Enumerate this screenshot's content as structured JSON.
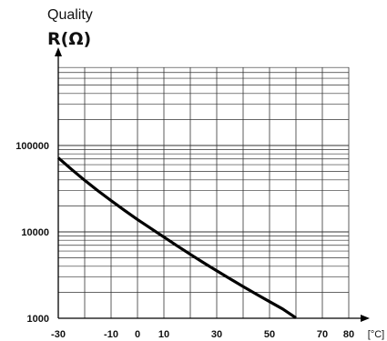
{
  "chart_data": {
    "type": "line",
    "title": "Quality",
    "ylabel": "R(Ω)",
    "xlabel": "[°C]",
    "x_ticks": [
      -30,
      -10,
      0,
      10,
      30,
      50,
      70,
      80
    ],
    "y_ticks": [
      1000,
      10000,
      100000
    ],
    "y_tick_labels": [
      "1000",
      "10000",
      "100000"
    ],
    "y_scale": "log",
    "xlim": [
      -30,
      80
    ],
    "ylim": [
      1000,
      1000000
    ],
    "grid": true,
    "series": [
      {
        "x": [
          -30,
          -25,
          -20,
          -15,
          -10,
          -5,
          0,
          5,
          10,
          15,
          20,
          25,
          30,
          35,
          40,
          45,
          50,
          55,
          60
        ],
        "values": [
          72000,
          53000,
          39500,
          30000,
          23000,
          17800,
          13900,
          11000,
          8700,
          6900,
          5500,
          4400,
          3550,
          2870,
          2330,
          1900,
          1560,
          1280,
          1010
        ]
      }
    ]
  }
}
